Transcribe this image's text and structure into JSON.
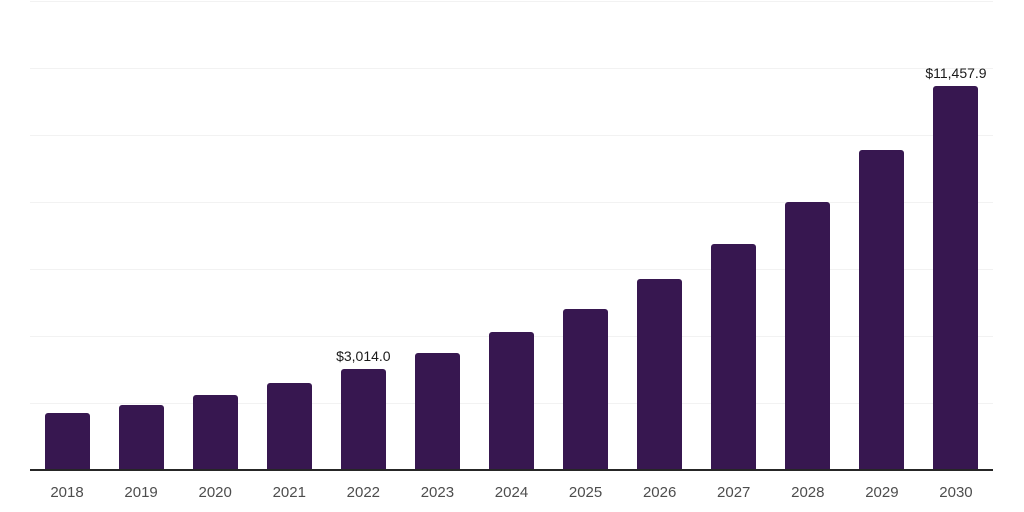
{
  "chart_data": {
    "type": "bar",
    "title": "",
    "xlabel": "",
    "ylabel": "",
    "categories": [
      "2018",
      "2019",
      "2020",
      "2021",
      "2022",
      "2023",
      "2024",
      "2025",
      "2026",
      "2027",
      "2028",
      "2029",
      "2030"
    ],
    "values": [
      1700,
      1940,
      2250,
      2590,
      3014.0,
      3480,
      4110,
      4800,
      5690,
      6760,
      8010,
      9550,
      11457.9
    ],
    "value_labels": [
      "",
      "",
      "",
      "",
      "$3,014.0",
      "",
      "",
      "",
      "",
      "",
      "",
      "",
      "$11,457.9"
    ],
    "ylim": [
      0,
      14000
    ],
    "gridline_step": 2000,
    "grid": true,
    "legend": "none",
    "y_tick_labels_visible": false,
    "bar_color": "#371750",
    "gridline_color": "#f2f2f2",
    "axis_line_color": "#262626",
    "tick_label_color": "#4d4d4d",
    "value_label_color": "#1a1a1a",
    "background_color": "#ffffff"
  }
}
